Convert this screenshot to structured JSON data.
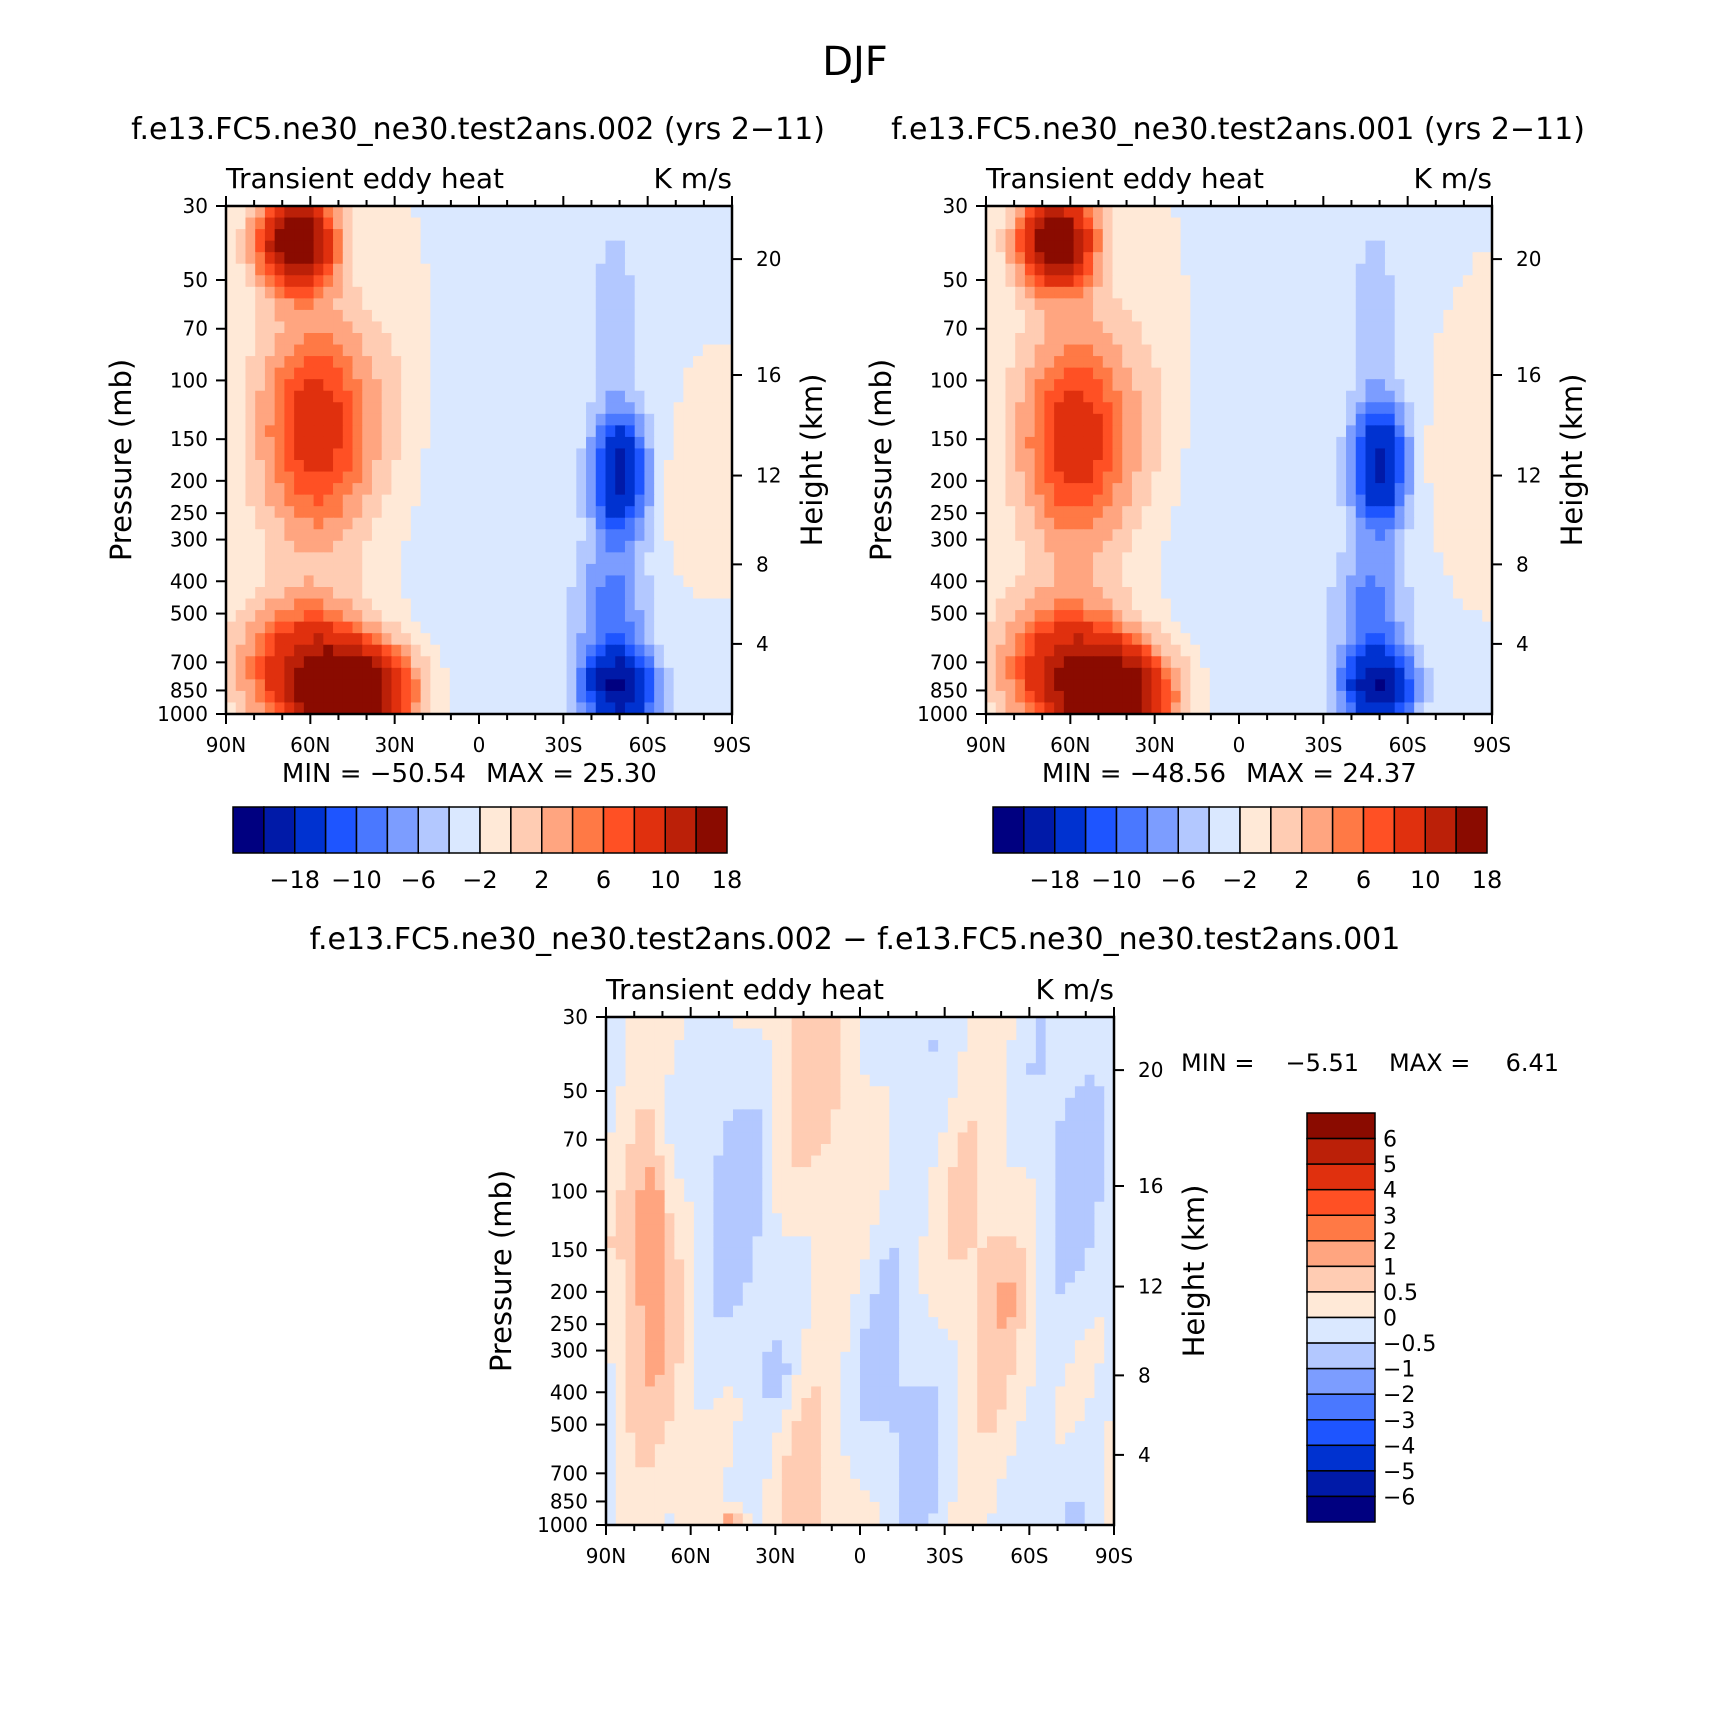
{
  "figure": {
    "title": "DJF",
    "panel_a_title": "f.e13.FC5.ne30_ne30.test2ans.002 (yrs 2−11)",
    "panel_b_title": "f.e13.FC5.ne30_ne30.test2ans.001 (yrs 2−11)",
    "panel_c_title": "f.e13.FC5.ne30_ne30.test2ans.002 − f.e13.FC5.ne30_ne30.test2ans.001"
  },
  "chart_data": [
    {
      "id": "a",
      "type": "heatmap",
      "variable": "Transient eddy heat",
      "units": "K m/s",
      "xlabel": "",
      "ylabel": "Pressure (mb)",
      "ylabel_right": "Height (km)",
      "x_ticks": [
        "90N",
        "60N",
        "30N",
        "0",
        "30S",
        "60S",
        "90S"
      ],
      "x_range": [
        90,
        -90
      ],
      "y_ticks": [
        30,
        50,
        70,
        100,
        150,
        200,
        250,
        300,
        400,
        500,
        700,
        850,
        1000
      ],
      "y_range": [
        30,
        1000
      ],
      "height_ticks": [
        4,
        8,
        12,
        16,
        20
      ],
      "min_label": "MIN = −50.54",
      "max_label": "MAX =  25.30",
      "min": -50.54,
      "max": 25.3,
      "features": [
        {
          "lat": 65,
          "p": 38,
          "value": 24,
          "lat_w": 9,
          "logp_w": 0.22
        },
        {
          "lat": 58,
          "p": 140,
          "value": 12,
          "lat_w": 14,
          "logp_w": 0.55
        },
        {
          "lat": 45,
          "p": 870,
          "value": 24,
          "lat_w": 14,
          "logp_w": 0.22
        },
        {
          "lat": 62,
          "p": 700,
          "value": 12,
          "lat_w": 16,
          "logp_w": 0.3
        },
        {
          "lat": 30,
          "p": 120,
          "value": 1.5,
          "lat_w": 10,
          "logp_w": 0.6
        },
        {
          "lat": 5,
          "p": 300,
          "value": -1.5,
          "lat_w": 18,
          "logp_w": 1.1
        },
        {
          "lat": -50,
          "p": 190,
          "value": -15,
          "lat_w": 7,
          "logp_w": 0.3
        },
        {
          "lat": -50,
          "p": 840,
          "value": -17,
          "lat_w": 9,
          "logp_w": 0.18
        },
        {
          "lat": -47,
          "p": 500,
          "value": -7,
          "lat_w": 9,
          "logp_w": 0.35
        },
        {
          "lat": -48,
          "p": 60,
          "value": -3,
          "lat_w": 7,
          "logp_w": 0.5
        },
        {
          "lat": -72,
          "p": 220,
          "value": 1.5,
          "lat_w": 5,
          "logp_w": 0.25
        }
      ],
      "colorbar": {
        "orientation": "horizontal",
        "tick_labels": [
          "−18",
          "−10",
          "−6",
          "−2",
          "2",
          "6",
          "10",
          "18"
        ]
      }
    },
    {
      "id": "b",
      "type": "heatmap",
      "variable": "Transient eddy heat",
      "units": "K m/s",
      "xlabel": "",
      "ylabel": "Pressure (mb)",
      "ylabel_right": "Height (km)",
      "x_ticks": [
        "90N",
        "60N",
        "30N",
        "0",
        "30S",
        "60S",
        "90S"
      ],
      "x_range": [
        90,
        -90
      ],
      "y_ticks": [
        30,
        50,
        70,
        100,
        150,
        200,
        250,
        300,
        400,
        500,
        700,
        850,
        1000
      ],
      "y_range": [
        30,
        1000
      ],
      "height_ticks": [
        4,
        8,
        12,
        16,
        20
      ],
      "min_label": "MIN = −48.56",
      "max_label": "MAX =  24.37",
      "min": -48.56,
      "max": 24.37,
      "features": [
        {
          "lat": 65,
          "p": 38,
          "value": 23,
          "lat_w": 9,
          "logp_w": 0.22
        },
        {
          "lat": 58,
          "p": 150,
          "value": 12,
          "lat_w": 14,
          "logp_w": 0.55
        },
        {
          "lat": 45,
          "p": 870,
          "value": 23,
          "lat_w": 14,
          "logp_w": 0.22
        },
        {
          "lat": 62,
          "p": 700,
          "value": 12,
          "lat_w": 16,
          "logp_w": 0.3
        },
        {
          "lat": 30,
          "p": 120,
          "value": 1.5,
          "lat_w": 10,
          "logp_w": 0.6
        },
        {
          "lat": 5,
          "p": 300,
          "value": -1.5,
          "lat_w": 18,
          "logp_w": 1.1
        },
        {
          "lat": -50,
          "p": 180,
          "value": -15,
          "lat_w": 7,
          "logp_w": 0.3
        },
        {
          "lat": -50,
          "p": 840,
          "value": -16,
          "lat_w": 9,
          "logp_w": 0.18
        },
        {
          "lat": -47,
          "p": 500,
          "value": -7,
          "lat_w": 9,
          "logp_w": 0.35
        },
        {
          "lat": -48,
          "p": 60,
          "value": -3,
          "lat_w": 7,
          "logp_w": 0.5
        },
        {
          "lat": -75,
          "p": 180,
          "value": 1.5,
          "lat_w": 6,
          "logp_w": 0.3
        }
      ],
      "colorbar": {
        "orientation": "horizontal",
        "tick_labels": [
          "−18",
          "−10",
          "−6",
          "−2",
          "2",
          "6",
          "10",
          "18"
        ]
      }
    },
    {
      "id": "c",
      "type": "heatmap",
      "variable": "Transient eddy heat",
      "units": "K m/s",
      "xlabel": "",
      "ylabel": "Pressure (mb)",
      "ylabel_right": "Height (km)",
      "x_ticks": [
        "90N",
        "60N",
        "30N",
        "0",
        "30S",
        "60S",
        "90S"
      ],
      "x_range": [
        90,
        -90
      ],
      "y_ticks": [
        30,
        50,
        70,
        100,
        150,
        200,
        250,
        300,
        400,
        500,
        700,
        850,
        1000
      ],
      "y_range": [
        30,
        1000
      ],
      "height_ticks": [
        4,
        8,
        12,
        16,
        20
      ],
      "min_label": "MIN =",
      "min_value": "−5.51",
      "max_label": "MAX =",
      "max_value": "6.41",
      "min": -5.51,
      "max": 6.41,
      "features": [
        {
          "lat": 74,
          "p": 130,
          "value": 1.4,
          "lat_w": 4,
          "logp_w": 0.45
        },
        {
          "lat": 45,
          "p": 990,
          "value": 1.6,
          "lat_w": 4,
          "logp_w": 0.08
        },
        {
          "lat": 30,
          "p": 350,
          "value": -0.7,
          "lat_w": 4,
          "logp_w": 0.15
        },
        {
          "lat": -52,
          "p": 210,
          "value": 0.7,
          "lat_w": 3,
          "logp_w": 0.1
        }
      ],
      "colorbar": {
        "orientation": "vertical",
        "tick_labels": [
          "6",
          "5",
          "4",
          "3",
          "2",
          "1",
          "0.5",
          "0",
          "−0.5",
          "−1",
          "−2",
          "−3",
          "−4",
          "−5",
          "−6"
        ]
      }
    }
  ],
  "colors": {
    "palette": [
      "#000080",
      "#001aa8",
      "#0032d0",
      "#1e55ff",
      "#4a78ff",
      "#7c9dff",
      "#b3c8ff",
      "#dae8ff",
      "#ffe9d7",
      "#ffccb3",
      "#ffa580",
      "#ff7945",
      "#ff5024",
      "#e0300e",
      "#bb2008",
      "#8a0b00"
    ]
  }
}
